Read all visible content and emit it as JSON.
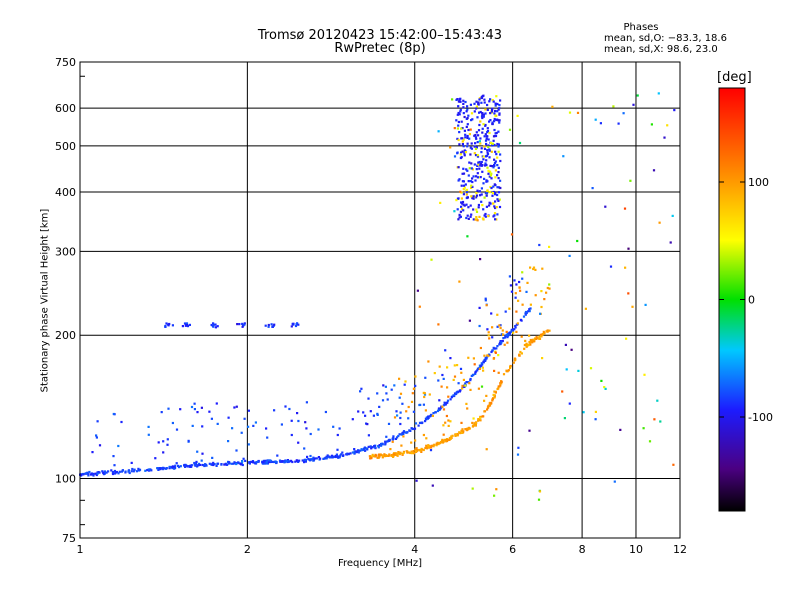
{
  "chart_data": {
    "type": "scatter",
    "title": "Tromsø 20120423 15:42:00–15:43:43",
    "subtitle": "RwPretec (8p)",
    "xlabel": "Frequency [MHz]",
    "ylabel": "Stationary phase Virtual Height [km]",
    "x_scale": "log",
    "y_scale": "log",
    "xlim": [
      1,
      12
    ],
    "ylim": [
      75,
      750
    ],
    "xticks": [
      1,
      2,
      4,
      6,
      8,
      10,
      12
    ],
    "yticks": [
      75,
      100,
      200,
      300,
      400,
      500,
      600,
      750
    ],
    "grid": true,
    "phases_box": {
      "heading": "Phases",
      "line_o": "mean, sd,O: −83.3, 18.6",
      "line_x": "mean, sd,X:  98.6, 23.0"
    },
    "colorbar": {
      "label": "[deg]",
      "range": [
        -180,
        180
      ],
      "ticks": [
        100,
        0,
        -100
      ]
    },
    "series": [
      {
        "mode": "O",
        "phase_mean": -83.3,
        "phase_sd": 18.6,
        "trace": [
          [
            1.0,
            102
          ],
          [
            1.1,
            103
          ],
          [
            1.3,
            104
          ],
          [
            1.5,
            106
          ],
          [
            1.7,
            107
          ],
          [
            2.0,
            108
          ],
          [
            2.5,
            109
          ],
          [
            3.0,
            112
          ],
          [
            3.5,
            118
          ],
          [
            4.0,
            128
          ],
          [
            4.5,
            142
          ],
          [
            5.0,
            160
          ],
          [
            5.5,
            185
          ],
          [
            6.0,
            205
          ],
          [
            6.5,
            230
          ]
        ]
      },
      {
        "mode": "X",
        "phase_mean": 98.6,
        "phase_sd": 23.0,
        "trace": [
          [
            3.3,
            111
          ],
          [
            3.6,
            112
          ],
          [
            4.0,
            114
          ],
          [
            4.3,
            117
          ],
          [
            4.6,
            121
          ],
          [
            4.9,
            126
          ],
          [
            5.2,
            132
          ],
          [
            5.5,
            145
          ],
          [
            5.8,
            165
          ],
          [
            6.1,
            180
          ],
          [
            6.5,
            195
          ],
          [
            7.0,
            205
          ]
        ]
      },
      {
        "mode": "F-layer echoes",
        "x_range": [
          4.75,
          5.7
        ],
        "y_range": [
          350,
          640
        ]
      },
      {
        "mode": "Sporadic layer",
        "points": [
          [
            1.45,
            210
          ],
          [
            1.55,
            210
          ],
          [
            1.75,
            210
          ],
          [
            1.95,
            210
          ],
          [
            2.2,
            210
          ],
          [
            2.45,
            210
          ]
        ]
      }
    ]
  }
}
